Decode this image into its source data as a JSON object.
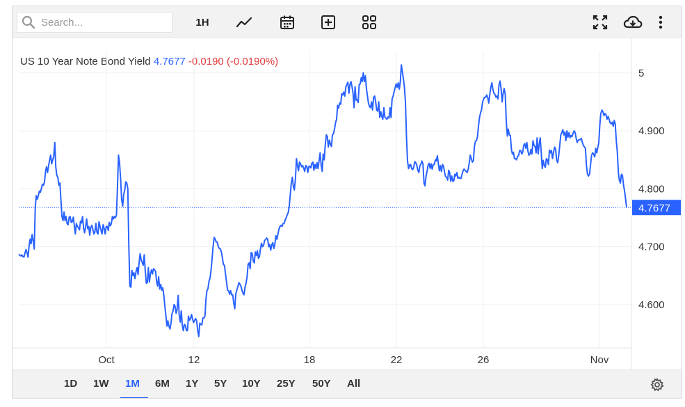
{
  "toolbar": {
    "search_placeholder": "Search...",
    "interval_label": "1H",
    "icons": [
      "search-icon",
      "line-chart-icon",
      "calendar-icon",
      "add-box-icon",
      "grid-icon",
      "fullscreen-icon",
      "cloud-download-icon",
      "more-vertical-icon"
    ]
  },
  "header": {
    "name": "US 10 Year Note Bond Yield",
    "value": "4.7677",
    "change": "-0.0190 (-0.0190%)"
  },
  "colors": {
    "line": "#2962ff",
    "change_negative": "#e03c3c",
    "grid": "#eef0f3",
    "price_tag_bg": "#2962ff"
  },
  "chart_data": {
    "type": "line",
    "title": "US 10 Year Note Bond Yield",
    "x_ticks": [
      "Oct",
      "12",
      "18",
      "22",
      "26",
      "Nov"
    ],
    "y_ticks": [
      "5",
      "4.900",
      "4.800",
      "4.700",
      "4.600"
    ],
    "ylim": [
      4.535,
      5.037
    ],
    "last_value_label": "4.7677",
    "series": [
      {
        "values": [
          4.687,
          4.685,
          4.684,
          4.686,
          4.683,
          4.682,
          4.689,
          4.695,
          4.69,
          4.682,
          4.701,
          4.713,
          4.705,
          4.721,
          4.71,
          4.696,
          4.768,
          4.788,
          4.782,
          4.788,
          4.796,
          4.794,
          4.8,
          4.808,
          4.806,
          4.812,
          4.83,
          4.838,
          4.828,
          4.84,
          4.85,
          4.858,
          4.843,
          4.85,
          4.856,
          4.88,
          4.838,
          4.823,
          4.82,
          4.806,
          4.81,
          4.78,
          4.752,
          4.745,
          4.76,
          4.745,
          4.752,
          4.74,
          4.738,
          4.751,
          4.752,
          4.742,
          4.743,
          4.751,
          4.736,
          4.722,
          4.74,
          4.735,
          4.733,
          4.729,
          4.744,
          4.741,
          4.752,
          4.732,
          4.724,
          4.734,
          4.748,
          4.731,
          4.735,
          4.72,
          4.733,
          4.737,
          4.73,
          4.722,
          4.725,
          4.74,
          4.725,
          4.722,
          4.743,
          4.735,
          4.728,
          4.722,
          4.738,
          4.732,
          4.722,
          4.735,
          4.735,
          4.728,
          4.742,
          4.736,
          4.74,
          4.752,
          4.748,
          4.752,
          4.75,
          4.755,
          4.806,
          4.858,
          4.845,
          4.818,
          4.782,
          4.77,
          4.79,
          4.797,
          4.812,
          4.81,
          4.8,
          4.704,
          4.632,
          4.63,
          4.659,
          4.65,
          4.655,
          4.645,
          4.657,
          4.664,
          4.652,
          4.672,
          4.688,
          4.677,
          4.673,
          4.668,
          4.686,
          4.658,
          4.637,
          4.638,
          4.664,
          4.639,
          4.653,
          4.66,
          4.653,
          4.662,
          4.66,
          4.658,
          4.64,
          4.632,
          4.648,
          4.627,
          4.635,
          4.625,
          4.629,
          4.617,
          4.598,
          4.582,
          4.563,
          4.572,
          4.563,
          4.558,
          4.568,
          4.584,
          4.589,
          4.6,
          4.597,
          4.585,
          4.592,
          4.616,
          4.582,
          4.57,
          4.589,
          4.565,
          4.555,
          4.566,
          4.564,
          4.555,
          4.555,
          4.58,
          4.573,
          4.576,
          4.583,
          4.575,
          4.569,
          4.573,
          4.576,
          4.572,
          4.555,
          4.545,
          4.568,
          4.566,
          4.565,
          4.577,
          4.577,
          4.58,
          4.61,
          4.624,
          4.628,
          4.641,
          4.646,
          4.66,
          4.68,
          4.701,
          4.716,
          4.713,
          4.708,
          4.708,
          4.7,
          4.697,
          4.696,
          4.691,
          4.681,
          4.669,
          4.668,
          4.653,
          4.64,
          4.625,
          4.624,
          4.618,
          4.624,
          4.617,
          4.617,
          4.603,
          4.593,
          4.618,
          4.625,
          4.631,
          4.638,
          4.635,
          4.632,
          4.625,
          4.62,
          4.617,
          4.63,
          4.637,
          4.648,
          4.67,
          4.672,
          4.662,
          4.69,
          4.688,
          4.675,
          4.672,
          4.691,
          4.685,
          4.693,
          4.68,
          4.683,
          4.696,
          4.706,
          4.7,
          4.702,
          4.711,
          4.712,
          4.715,
          4.713,
          4.7,
          4.704,
          4.694,
          4.703,
          4.707,
          4.697,
          4.704,
          4.719,
          4.713,
          4.722,
          4.73,
          4.735,
          4.737,
          4.735,
          4.74,
          4.74,
          4.746,
          4.75,
          4.755,
          4.759,
          4.77,
          4.79,
          4.81,
          4.82,
          4.803,
          4.798,
          4.817,
          4.852,
          4.84,
          4.831,
          4.846,
          4.843,
          4.838,
          4.84,
          4.836,
          4.83,
          4.84,
          4.839,
          4.828,
          4.838,
          4.839,
          4.836,
          4.844,
          4.846,
          4.832,
          4.842,
          4.835,
          4.845,
          4.835,
          4.848,
          4.862,
          4.841,
          4.83,
          4.86,
          4.85,
          4.876,
          4.893,
          4.89,
          4.872,
          4.884,
          4.877,
          4.873,
          4.893,
          4.895,
          4.903,
          4.914,
          4.92,
          4.944,
          4.939,
          4.948,
          4.946,
          4.964,
          4.962,
          4.967,
          4.96,
          4.976,
          4.98,
          4.984,
          4.965,
          4.98,
          4.985,
          4.977,
          4.966,
          4.94,
          4.976,
          4.953,
          4.954,
          4.949,
          4.98,
          4.981,
          4.992,
          4.985,
          5.0,
          4.985,
          4.995,
          4.973,
          4.961,
          4.948,
          4.942,
          4.94,
          4.95,
          4.936,
          4.958,
          4.96,
          4.95,
          4.936,
          4.934,
          4.95,
          4.923,
          4.933,
          4.925,
          4.92,
          4.94,
          4.923,
          4.922,
          4.92,
          4.924,
          4.922,
          4.94,
          4.923,
          4.955,
          4.96,
          4.968,
          4.975,
          4.981,
          4.975,
          4.983,
          4.972,
          4.985,
          5.014,
          5.002,
          4.989,
          4.975,
          4.95,
          4.89,
          4.848,
          4.835,
          4.841,
          4.842,
          4.835,
          4.833,
          4.837,
          4.847,
          4.845,
          4.841,
          4.832,
          4.828,
          4.84,
          4.842,
          4.848,
          4.843,
          4.81,
          4.805,
          4.822,
          4.83,
          4.841,
          4.844,
          4.835,
          4.843,
          4.834,
          4.842,
          4.842,
          4.85,
          4.848,
          4.857,
          4.843,
          4.831,
          4.84,
          4.83,
          4.842,
          4.839,
          4.829,
          4.821,
          4.82,
          4.815,
          4.832,
          4.828,
          4.813,
          4.822,
          4.813,
          4.814,
          4.825,
          4.822,
          4.828,
          4.818,
          4.82,
          4.818,
          4.818,
          4.825,
          4.831,
          4.834,
          4.832,
          4.83,
          4.828,
          4.834,
          4.844,
          4.858,
          4.852,
          4.846,
          4.848,
          4.872,
          4.882,
          4.883,
          4.89,
          4.908,
          4.923,
          4.931,
          4.937,
          4.95,
          4.955,
          4.958,
          4.958,
          4.962,
          4.957,
          4.948,
          4.963,
          4.975,
          4.983,
          4.972,
          4.965,
          4.963,
          4.958,
          4.96,
          4.955,
          4.98,
          4.986,
          4.972,
          4.95,
          4.965,
          4.973,
          4.963,
          4.917,
          4.891,
          4.903,
          4.893,
          4.892,
          4.868,
          4.86,
          4.863,
          4.852,
          4.852,
          4.85,
          4.856,
          4.857,
          4.866,
          4.866,
          4.86,
          4.863,
          4.875,
          4.878,
          4.87,
          4.88,
          4.866,
          4.858,
          4.86,
          4.868,
          4.86,
          4.883,
          4.875,
          4.873,
          4.862,
          4.888,
          4.86,
          4.877,
          4.888,
          4.862,
          4.835,
          4.849,
          4.84,
          4.837,
          4.852,
          4.85,
          4.842,
          4.867,
          4.862,
          4.866,
          4.852,
          4.863,
          4.872,
          4.868,
          4.85,
          4.845,
          4.857,
          4.875,
          4.893,
          4.897,
          4.902,
          4.893,
          4.898,
          4.883,
          4.9,
          4.889,
          4.897,
          4.888,
          4.892,
          4.89,
          4.896,
          4.9,
          4.897,
          4.887,
          4.88,
          4.884,
          4.885,
          4.885,
          4.887,
          4.88,
          4.875,
          4.872,
          4.87,
          4.84,
          4.825,
          4.822,
          4.826,
          4.842,
          4.858,
          4.862,
          4.86,
          4.855,
          4.87,
          4.862,
          4.871,
          4.88,
          4.91,
          4.93,
          4.936,
          4.933,
          4.926,
          4.93,
          4.928,
          4.92,
          4.925,
          4.92,
          4.914,
          4.912,
          4.915,
          4.908,
          4.918,
          4.912,
          4.883,
          4.863,
          4.828,
          4.815,
          4.81,
          4.825,
          4.823,
          4.806,
          4.797,
          4.783,
          4.768
        ]
      }
    ]
  },
  "bottom": {
    "ranges": [
      "1D",
      "1W",
      "1M",
      "6M",
      "1Y",
      "5Y",
      "10Y",
      "25Y",
      "50Y",
      "All"
    ],
    "active_index": 2,
    "settings_icon": "gear-icon"
  }
}
